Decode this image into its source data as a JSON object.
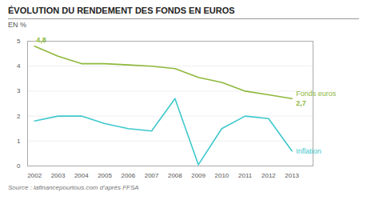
{
  "chart_data": {
    "type": "line",
    "title": "ÉVOLUTION DU RENDEMENT DES FONDS EN EUROS",
    "y_label": "EN %",
    "source": "Source : lafinancepourtous.com d’après FFSA",
    "x": [
      2002,
      2003,
      2004,
      2005,
      2006,
      2007,
      2008,
      2009,
      2010,
      2011,
      2012,
      2013
    ],
    "series": [
      {
        "name": "Fonds euros",
        "color": "#8db83b",
        "values": [
          4.8,
          4.4,
          4.1,
          4.1,
          4.05,
          4.0,
          3.9,
          3.55,
          3.35,
          3.0,
          2.85,
          2.7
        ],
        "value_labels": [
          "4,8",
          null,
          null,
          null,
          null,
          null,
          null,
          null,
          null,
          null,
          null,
          "2,7"
        ]
      },
      {
        "name": "Inflation",
        "color": "#3ec8cc",
        "values": [
          1.8,
          2.0,
          2.0,
          1.7,
          1.5,
          1.4,
          2.7,
          0.05,
          1.5,
          2.0,
          1.9,
          0.6
        ]
      }
    ],
    "xlim": [
      2001.7,
      2013.9
    ],
    "xticks": [
      2002,
      2003,
      2004,
      2005,
      2006,
      2007,
      2008,
      2009,
      2010,
      2011,
      2012,
      2013
    ],
    "ylim": [
      0,
      5
    ],
    "yticks": [
      0,
      1,
      2,
      3,
      4,
      5
    ],
    "grid": true
  }
}
